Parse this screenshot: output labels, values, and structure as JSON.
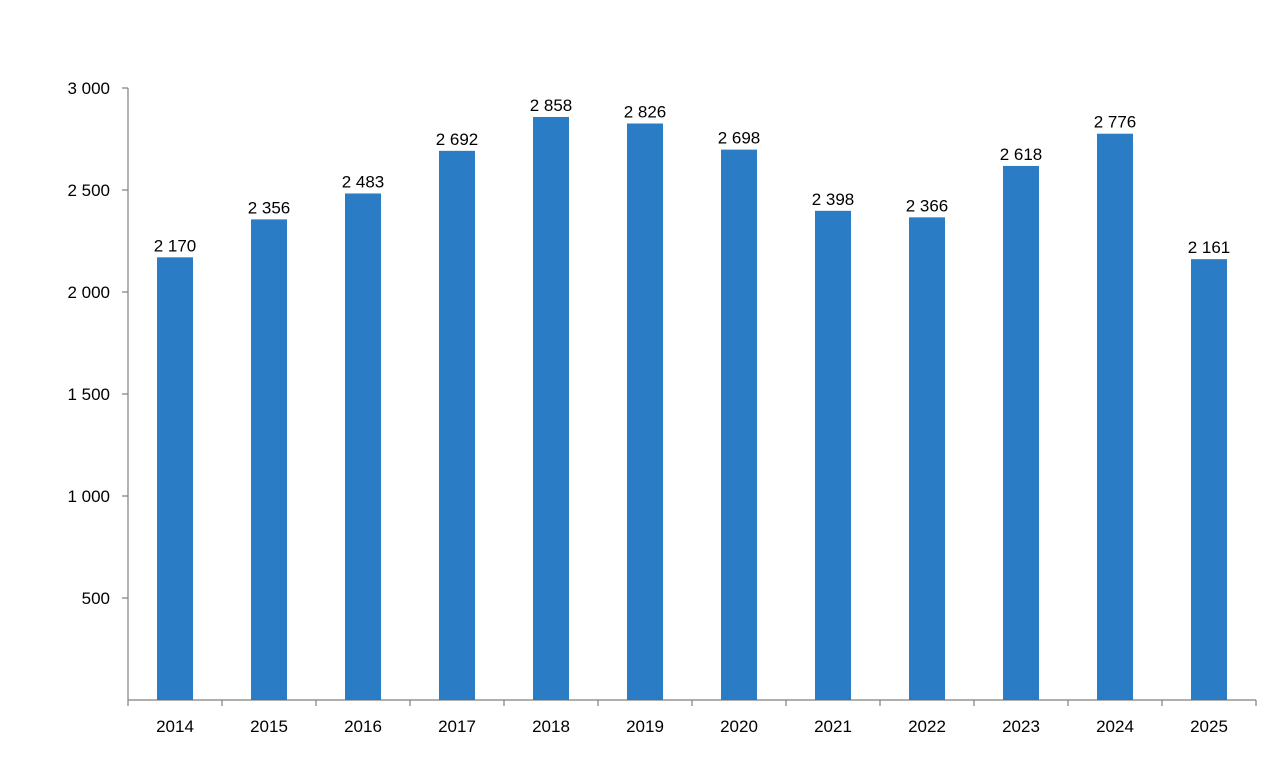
{
  "chart_data": {
    "type": "bar",
    "categories": [
      "2014",
      "2015",
      "2016",
      "2017",
      "2018",
      "2019",
      "2020",
      "2021",
      "2022",
      "2023",
      "2024",
      "2025"
    ],
    "values": [
      2170,
      2356,
      2483,
      2692,
      2858,
      2826,
      2698,
      2398,
      2366,
      2618,
      2776,
      2161
    ],
    "value_labels": [
      "2 170",
      "2 356",
      "2 483",
      "2 692",
      "2 858",
      "2 826",
      "2 698",
      "2 398",
      "2 366",
      "2 618",
      "2 776",
      "2 161"
    ],
    "ylim": [
      0,
      3000
    ],
    "y_ticks": [
      500,
      1000,
      1500,
      2000,
      2500,
      3000
    ],
    "y_tick_labels": [
      "500",
      "1 000",
      "1 500",
      "2 000",
      "2 500",
      "3 000"
    ],
    "grid": false,
    "title": "",
    "xlabel": "",
    "ylabel": "",
    "bar_color": "#2a7dc4"
  }
}
